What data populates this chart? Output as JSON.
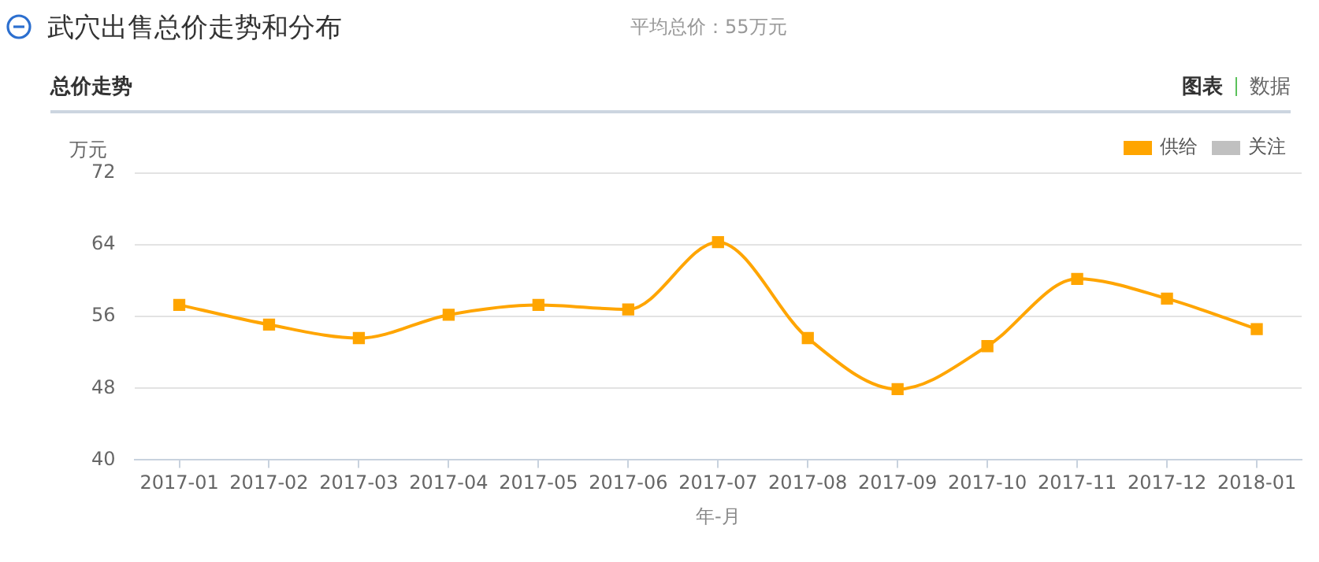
{
  "chart_data": {
    "type": "line",
    "title": "武穴出售总价走势和分布",
    "subtitle": "平均总价：55万元",
    "annotations": [
      "总价走势",
      "图表",
      "数据"
    ],
    "xlabel": "年-月",
    "ylabel": "万元",
    "categories": [
      "2017-01",
      "2017-02",
      "2017-03",
      "2017-04",
      "2017-05",
      "2017-06",
      "2017-07",
      "2017-08",
      "2017-09",
      "2017-10",
      "2017-11",
      "2017-12",
      "2018-01"
    ],
    "series": [
      {
        "name": "供给",
        "color": "#ffa500",
        "values": [
          57.3,
          55.1,
          53.6,
          56.2,
          57.3,
          56.8,
          64.3,
          53.6,
          47.9,
          52.7,
          60.2,
          58.0,
          54.6
        ]
      },
      {
        "name": "关注",
        "color": "#c0c0c0",
        "values": [
          null,
          null,
          null,
          null,
          null,
          null,
          null,
          null,
          null,
          null,
          null,
          null,
          null
        ]
      }
    ],
    "ylim": [
      40,
      72
    ],
    "yticks": [
      40,
      48,
      56,
      64,
      72
    ],
    "grid": "y",
    "legend": "top right",
    "marker": "square",
    "line_style": "solid"
  }
}
